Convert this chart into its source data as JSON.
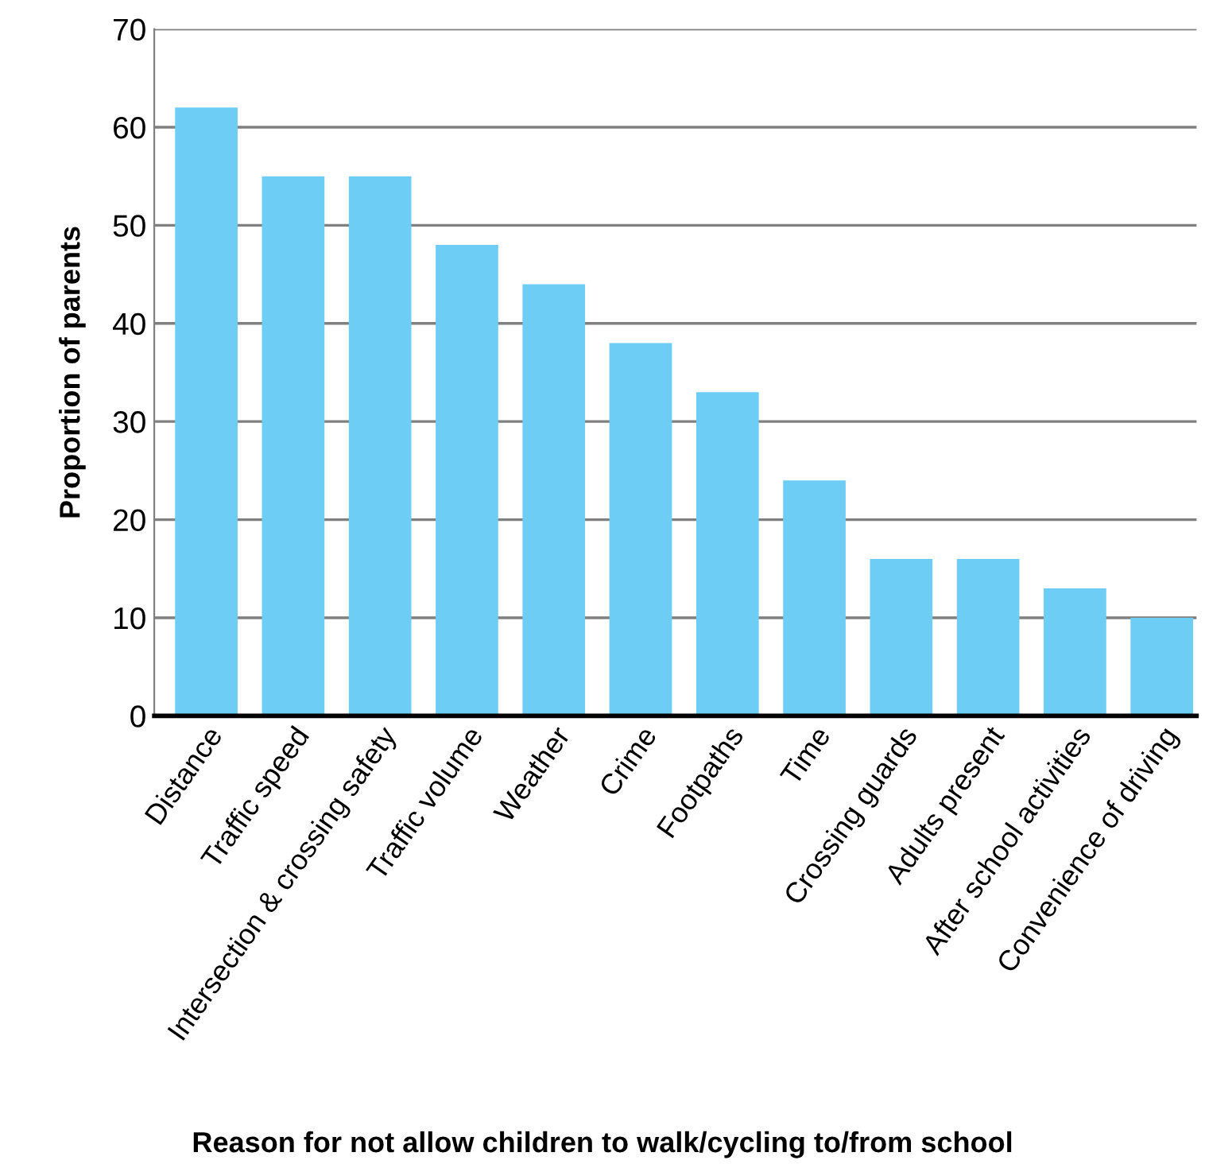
{
  "chart_data": {
    "type": "bar",
    "xlabel": "Reason for not allow children to walk/cycling to/from school",
    "ylabel": "Proportion of parents",
    "categories": [
      "Distance",
      "Traffic speed",
      "Intersection & crossing safety",
      "Traffic volume",
      "Weather",
      "Crime",
      "Footpaths",
      "Time",
      "Crossing guards",
      "Adults present",
      "After school activities",
      "Convenience of driving"
    ],
    "values": [
      62,
      55,
      55,
      48,
      44,
      38,
      33,
      24,
      16,
      16,
      13,
      10
    ],
    "color": "#6dcdf5",
    "ylim": [
      0,
      70
    ],
    "yticks": [
      0,
      10,
      20,
      30,
      40,
      50,
      60,
      70
    ],
    "grid": "y"
  }
}
